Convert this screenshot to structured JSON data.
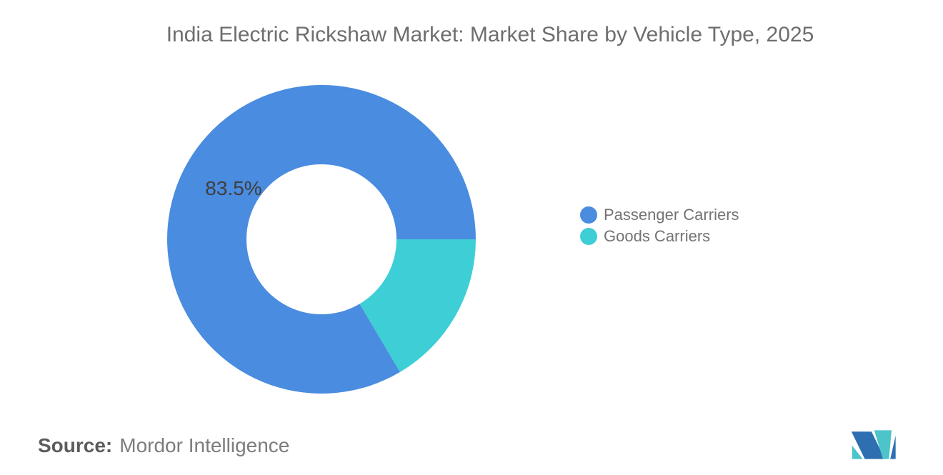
{
  "page": {
    "background": "#ffffff"
  },
  "title": "India Electric Rickshaw Market: Market Share by Vehicle Type, 2025",
  "legend": {
    "position": "right",
    "items": [
      {
        "label": "Passenger Carriers",
        "color": "#4A8CE0"
      },
      {
        "label": "Goods Carriers",
        "color": "#3ECED6"
      }
    ]
  },
  "chart_data": {
    "type": "pie",
    "subtype": "donut",
    "title": "India Electric Rickshaw Market: Market Share by Vehicle Type, 2025",
    "categories": [
      "Passenger Carriers",
      "Goods Carriers"
    ],
    "values": [
      83.5,
      16.5
    ],
    "unit": "%",
    "colors": [
      "#4A8CE0",
      "#3ECED6"
    ],
    "inner_radius_ratio": 0.485,
    "start_angle_deg_from_east_clockwise": 0,
    "slices": [
      {
        "label": "Goods Carriers",
        "value": 16.5,
        "color": "#3ECED6",
        "data_label": ""
      },
      {
        "label": "Passenger Carriers",
        "value": 83.5,
        "color": "#4A8CE0",
        "data_label": "83.5%"
      }
    ],
    "legend_position": "right",
    "data_label_color": "#3f3f3f",
    "grid": false
  },
  "source": {
    "label": "Source:",
    "value": "Mordor Intelligence"
  },
  "logo": {
    "name": "mordor-intelligence-logo",
    "blue": "#2E6FB2",
    "teal": "#4CC4C9"
  }
}
